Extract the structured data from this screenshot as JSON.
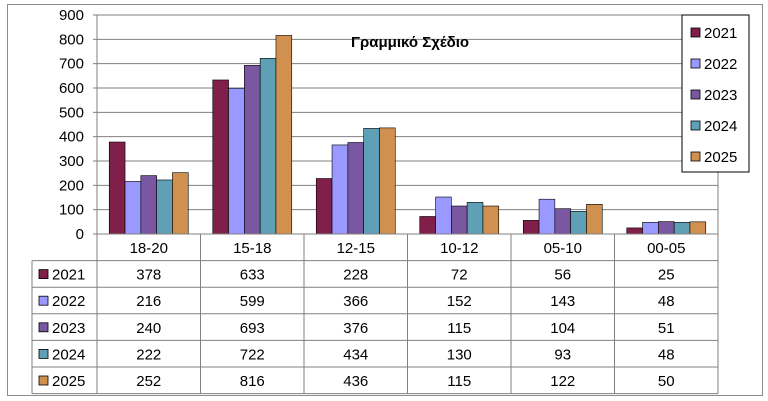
{
  "chart_data": {
    "type": "bar",
    "title": "Γραμμικό Σχέδιο",
    "categories": [
      "18-20",
      "15-18",
      "12-15",
      "10-12",
      "05-10",
      "00-05"
    ],
    "ylim": [
      0,
      900
    ],
    "yticks": [
      0,
      100,
      200,
      300,
      400,
      500,
      600,
      700,
      800,
      900
    ],
    "grid": true,
    "legend_position": "right",
    "data_table": true,
    "series": [
      {
        "name": "2021",
        "color": "#7f1f4a",
        "values": [
          378,
          633,
          228,
          72,
          56,
          25
        ]
      },
      {
        "name": "2022",
        "color": "#9999ff",
        "values": [
          216,
          599,
          366,
          152,
          143,
          48
        ]
      },
      {
        "name": "2023",
        "color": "#7a57a1",
        "values": [
          240,
          693,
          376,
          115,
          104,
          51
        ]
      },
      {
        "name": "2024",
        "color": "#5fa0b6",
        "values": [
          222,
          722,
          434,
          130,
          93,
          48
        ]
      },
      {
        "name": "2025",
        "color": "#d09050",
        "values": [
          252,
          816,
          436,
          115,
          122,
          50
        ]
      }
    ]
  }
}
